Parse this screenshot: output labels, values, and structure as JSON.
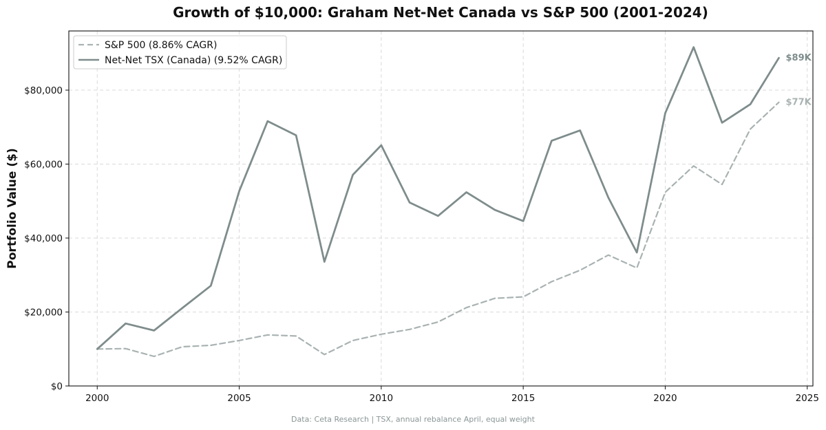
{
  "chart_data": {
    "type": "line",
    "title": "Growth of $10,000: Graham Net-Net Canada vs S&P 500 (2001-2024)",
    "xlabel": "",
    "ylabel": "Portfolio Value ($)",
    "xlim": [
      1999,
      2025.2
    ],
    "ylim": [
      0,
      96000
    ],
    "xticks": [
      2000,
      2005,
      2010,
      2015,
      2020,
      2025
    ],
    "xtick_labels": [
      "2000",
      "2005",
      "2010",
      "2015",
      "2020",
      "2025"
    ],
    "yticks": [
      0,
      20000,
      40000,
      60000,
      80000
    ],
    "ytick_labels": [
      "$0",
      "$20,000",
      "$40,000",
      "$60,000",
      "$80,000"
    ],
    "grid": true,
    "legend_position": "top-left",
    "x": [
      2000,
      2001,
      2002,
      2003,
      2004,
      2005,
      2006,
      2007,
      2008,
      2009,
      2010,
      2011,
      2012,
      2013,
      2014,
      2015,
      2016,
      2017,
      2018,
      2019,
      2020,
      2021,
      2022,
      2023,
      2024
    ],
    "series": [
      {
        "name": "S&P 500 (8.86% CAGR)",
        "color": "#a9b2b2",
        "style": "dashed",
        "values": [
          10000,
          10100,
          8000,
          10600,
          11000,
          12300,
          13800,
          13500,
          8500,
          12300,
          14000,
          15300,
          17300,
          21200,
          23700,
          24100,
          28200,
          31300,
          35400,
          31900,
          52400,
          59500,
          54500,
          69500,
          76700
        ],
        "end_label": "$77K"
      },
      {
        "name": "Net-Net TSX (Canada) (9.52% CAGR)",
        "color": "#7f8c8c",
        "style": "solid",
        "values": [
          10000,
          16900,
          15000,
          21100,
          27100,
          52700,
          71600,
          67800,
          33600,
          57100,
          65100,
          49600,
          46000,
          52400,
          47600,
          44600,
          66300,
          69100,
          50900,
          36100,
          73800,
          91600,
          71200,
          76200,
          88700
        ],
        "end_label": "$89K"
      }
    ],
    "source_note": "Data: Ceta Research | TSX, annual rebalance April, equal weight"
  }
}
